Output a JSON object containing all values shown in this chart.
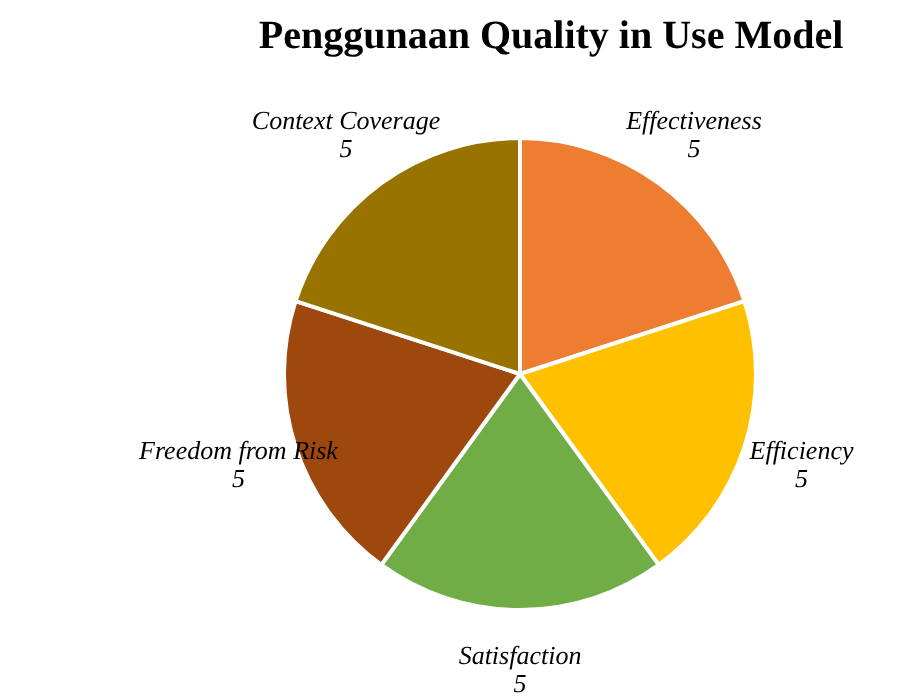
{
  "chart_data": {
    "type": "pie",
    "title": "Penggunaan Quality in Use Model",
    "categories": [
      "Effectiveness",
      "Efficiency",
      "Satisfaction",
      "Freedom from Risk",
      "Context Coverage"
    ],
    "values": [
      5,
      5,
      5,
      5,
      5
    ],
    "colors": [
      "#ed7d31",
      "#ffc000",
      "#70ad47",
      "#9e480e",
      "#997300"
    ],
    "data_labels": true,
    "legend": false
  }
}
